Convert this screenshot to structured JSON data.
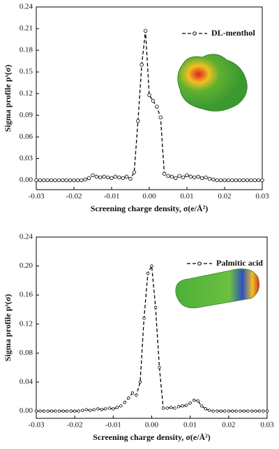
{
  "chart_data": [
    {
      "type": "line",
      "x_label": "Screening charge density, σ(e/Å²)",
      "y_label": "Sigma profile pˣ(σ)",
      "x": [
        -0.03,
        -0.029,
        -0.028,
        -0.027,
        -0.026,
        -0.025,
        -0.024,
        -0.023,
        -0.022,
        -0.021,
        -0.02,
        -0.019,
        -0.018,
        -0.017,
        -0.016,
        -0.015,
        -0.014,
        -0.013,
        -0.012,
        -0.011,
        -0.01,
        -0.009,
        -0.008,
        -0.007,
        -0.006,
        -0.005,
        -0.004,
        -0.003,
        -0.002,
        -0.001,
        0,
        0.001,
        0.002,
        0.003,
        0.004,
        0.005,
        0.006,
        0.007,
        0.008,
        0.009,
        0.01,
        0.011,
        0.012,
        0.013,
        0.014,
        0.015,
        0.016,
        0.017,
        0.018,
        0.019,
        0.02,
        0.021,
        0.022,
        0.023,
        0.024,
        0.025,
        0.026,
        0.027,
        0.028,
        0.029,
        0.03
      ],
      "series": [
        {
          "name": "DL-menthol",
          "color": "#000000",
          "values": [
            0,
            0,
            0,
            0,
            0,
            0,
            0,
            0,
            0,
            0,
            0,
            0,
            0,
            0.001,
            0.003,
            0.007,
            0.005,
            0.004,
            0.005,
            0.004,
            0.003,
            0.005,
            0.004,
            0.003,
            0.005,
            0.002,
            0.011,
            0.082,
            0.16,
            0.207,
            0.118,
            0.11,
            0.102,
            0.087,
            0.009,
            0.006,
            0.005,
            0.003,
            0.006,
            0.004,
            0.007,
            0.005,
            0.004,
            0.005,
            0.003,
            0.004,
            0.002,
            0.001,
            0,
            0,
            0,
            0,
            0,
            0,
            0,
            0,
            0,
            0,
            0,
            0,
            0
          ]
        }
      ],
      "xlim": [
        -0.03,
        0.03
      ],
      "xticks": [
        -0.03,
        -0.02,
        -0.01,
        {
          "value": 0,
          "label": "0.00"
        },
        0.01,
        0.02,
        0.03
      ],
      "ylim": [
        -0.013,
        0.24
      ],
      "yticks": [
        {
          "value": 0,
          "label": "0.00"
        },
        0.03,
        0.06,
        0.09,
        0.12,
        0.15,
        0.18,
        0.21,
        0.24
      ],
      "legend": "upper right"
    },
    {
      "type": "line",
      "x_label": "Screening charge density, σ(e/Å²)",
      "y_label": "Sigma profile pˣ(σ)",
      "x": [
        -0.03,
        -0.029,
        -0.028,
        -0.027,
        -0.026,
        -0.025,
        -0.024,
        -0.023,
        -0.022,
        -0.021,
        -0.02,
        -0.019,
        -0.018,
        -0.017,
        -0.016,
        -0.015,
        -0.014,
        -0.013,
        -0.012,
        -0.011,
        -0.01,
        -0.009,
        -0.008,
        -0.007,
        -0.006,
        -0.005,
        -0.004,
        -0.003,
        -0.002,
        -0.001,
        0,
        0.001,
        0.002,
        0.003,
        0.004,
        0.005,
        0.006,
        0.007,
        0.008,
        0.009,
        0.01,
        0.011,
        0.012,
        0.013,
        0.014,
        0.015,
        0.016,
        0.017,
        0.018,
        0.019,
        0.02,
        0.021,
        0.022,
        0.023,
        0.024,
        0.025,
        0.026,
        0.027,
        0.028,
        0.029,
        0.03
      ],
      "series": [
        {
          "name": "Palmitic acid",
          "color": "#000000",
          "values": [
            0,
            0,
            0,
            0,
            0,
            0,
            0,
            0,
            0,
            0,
            0,
            0,
            0.001,
            0.002,
            0.001,
            0.002,
            0.003,
            0.002,
            0.003,
            0.004,
            0.003,
            0.005,
            0.007,
            0.012,
            0.018,
            0.025,
            0.022,
            0.04,
            0.128,
            0.19,
            0.2,
            0.143,
            0.06,
            0.004,
            0.004,
            0.005,
            0.004,
            0.006,
            0.007,
            0.008,
            0.011,
            0.015,
            0.014,
            0.007,
            0.003,
            0.001,
            0,
            0,
            0,
            0,
            0,
            0,
            0,
            0,
            0,
            0,
            0,
            0,
            0,
            0,
            0
          ]
        }
      ],
      "xlim": [
        -0.03,
        0.03
      ],
      "xticks": [
        -0.03,
        -0.02,
        -0.01,
        {
          "value": 0,
          "label": "0.00"
        },
        0.01,
        0.02,
        0.03
      ],
      "ylim": [
        -0.01,
        0.24
      ],
      "yticks": [
        {
          "value": 0,
          "label": "0.00"
        },
        0.04,
        0.08,
        0.12,
        0.16,
        {
          "value": 0.2,
          "label": "0.20"
        },
        0.24
      ],
      "legend": "upper right"
    }
  ]
}
